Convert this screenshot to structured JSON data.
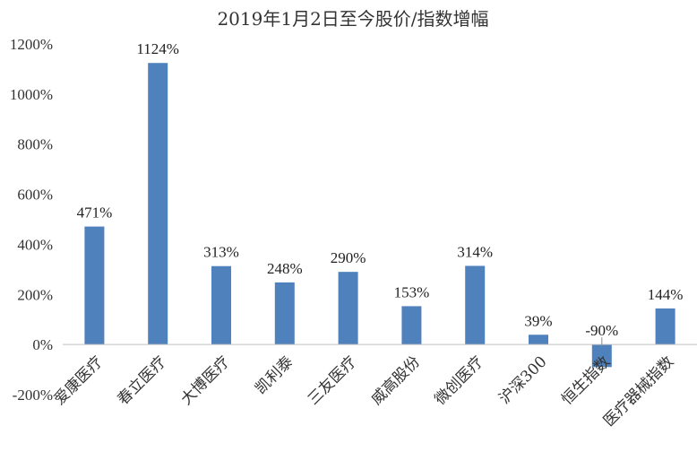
{
  "chart_data": {
    "type": "bar",
    "title": "2019年1月2日至今股价/指数增幅",
    "categories": [
      "爱康医疗",
      "春立医疗",
      "大博医疗",
      "凯利泰",
      "三友医疗",
      "威高股份",
      "微创医疗",
      "沪深300",
      "恒生指数",
      "医疗器械指数"
    ],
    "values": [
      471,
      1124,
      313,
      248,
      290,
      153,
      314,
      39,
      -90,
      144
    ],
    "value_labels": [
      "471%",
      "1124%",
      "313%",
      "248%",
      "290%",
      "153%",
      "314%",
      "39%",
      "-90%",
      "144%"
    ],
    "y_ticks": [
      -200,
      0,
      200,
      400,
      600,
      800,
      1000,
      1200
    ],
    "y_tick_labels": [
      "-200%",
      "0%",
      "200%",
      "400%",
      "600%",
      "800%",
      "1000%",
      "1200%"
    ],
    "ylim": [
      -200,
      1200
    ],
    "xlabel": "",
    "ylabel": "",
    "grid": false,
    "legend": "none",
    "bar_color": "#4F81BD"
  }
}
